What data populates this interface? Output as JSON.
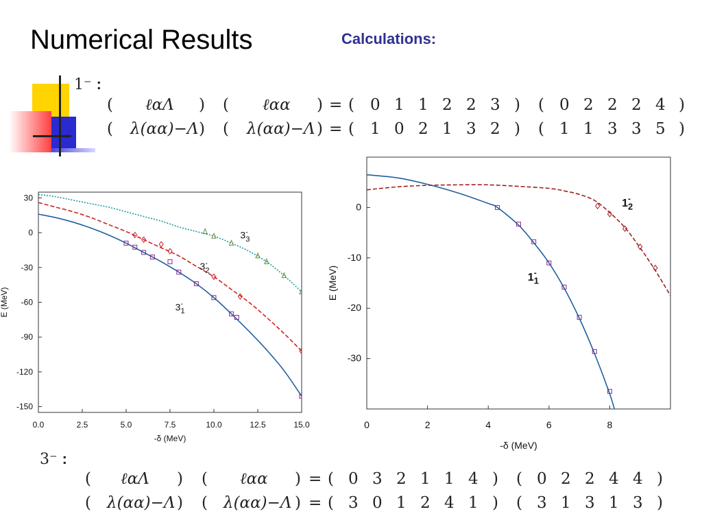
{
  "slide": {
    "title": "Numerical Results",
    "subtitle": "Calculations:"
  },
  "top_block": {
    "label": "1⁻",
    "row1": {
      "lhs1": "ℓαΛ",
      "lhs2": "ℓαα",
      "set1": [
        "0",
        "1",
        "1",
        "2",
        "2",
        "3"
      ],
      "set2": [
        "0",
        "2",
        "2",
        "2",
        "4"
      ]
    },
    "row2": {
      "lhs1": "λ(αα)−Λ",
      "lhs2": "λ(αα)−Λ",
      "set1": [
        "1",
        "0",
        "2",
        "1",
        "3",
        "2"
      ],
      "set2": [
        "1",
        "1",
        "3",
        "3",
        "5"
      ]
    }
  },
  "bottom_block": {
    "label": "3⁻",
    "row1": {
      "lhs1": "ℓαΛ",
      "lhs2": "ℓαα",
      "set1": [
        "0",
        "3",
        "2",
        "1",
        "1",
        "4"
      ],
      "set2": [
        "0",
        "2",
        "2",
        "4",
        "4"
      ]
    },
    "row2": {
      "lhs1": "λ(αα)−Λ",
      "lhs2": "λ(αα)−Λ",
      "set1": [
        "3",
        "0",
        "1",
        "2",
        "4",
        "1"
      ],
      "set2": [
        "3",
        "1",
        "3",
        "1",
        "3"
      ]
    }
  },
  "chart_data": [
    {
      "type": "line",
      "xlabel": "-δ (MeV)",
      "ylabel": "E (MeV)",
      "xlim": [
        0,
        15
      ],
      "ylim": [
        -155,
        35
      ],
      "xticks": [
        "0.0",
        "2.5",
        "5.0",
        "7.5",
        "10.0",
        "12.5",
        "15.0"
      ],
      "yticks": [
        "30",
        "0",
        "-30",
        "-60",
        "-90",
        "-120",
        "-150"
      ],
      "grid": false,
      "series": [
        {
          "name": "3⁻1",
          "color": "#1f5fa0",
          "dash": "solid",
          "x": [
            0,
            1,
            2,
            3,
            4,
            5,
            6,
            7,
            8,
            9,
            10,
            11,
            12,
            13,
            14,
            15
          ],
          "y": [
            16,
            13,
            9,
            4,
            -2,
            -9,
            -17,
            -25,
            -34,
            -44,
            -56,
            -70,
            -85,
            -101,
            -119,
            -141
          ]
        },
        {
          "name": "3⁻2",
          "color": "#cc2222",
          "dash": "dash",
          "x": [
            0,
            1,
            2,
            3,
            4,
            5,
            6,
            7,
            8,
            9,
            10,
            11,
            12,
            13,
            14,
            15
          ],
          "y": [
            26,
            22,
            18,
            13,
            7,
            1,
            -6,
            -13,
            -20,
            -29,
            -38,
            -49,
            -60,
            -73,
            -87,
            -102
          ]
        },
        {
          "name": "3⁻3",
          "color": "#1a9a9a",
          "dash": "dot",
          "x": [
            0,
            1,
            2,
            3,
            4,
            5,
            6,
            7,
            8,
            9,
            10,
            11,
            12,
            13,
            14,
            15
          ],
          "y": [
            33,
            31,
            28,
            25,
            22,
            18,
            14,
            10,
            5,
            1,
            -3,
            -9,
            -16,
            -25,
            -37,
            -51
          ]
        }
      ],
      "markers": [
        {
          "series": "3⁻1",
          "shape": "square",
          "color": "#8a2a8a",
          "x": [
            5,
            5.5,
            6,
            6.5,
            7.5,
            8,
            9,
            10,
            11,
            11.3,
            15
          ],
          "y": [
            -9,
            -12.5,
            -17,
            -21,
            -25,
            -34,
            -44,
            -56,
            -70,
            -73,
            -141
          ]
        },
        {
          "series": "3⁻2",
          "shape": "diamond",
          "color": "#cc2222",
          "x": [
            5.5,
            6,
            7,
            7.5,
            10,
            11.5,
            15
          ],
          "y": [
            -2,
            -6,
            -10,
            -16,
            -38,
            -55,
            -102
          ]
        },
        {
          "series": "3⁻3",
          "shape": "triangle",
          "color": "#6a8a3a",
          "x": [
            9.5,
            10,
            11,
            12.5,
            13,
            14,
            15
          ],
          "y": [
            1,
            -3,
            -9,
            -20,
            -25,
            -37,
            -51
          ]
        }
      ],
      "annotations": [
        {
          "text": "3",
          "sup": "-",
          "sub": "3",
          "x": 11.5,
          "y": -5
        },
        {
          "text": "3",
          "sup": "-",
          "sub": "2",
          "x": 9.2,
          "y": -32
        },
        {
          "text": "3",
          "sup": "-",
          "sub": "1",
          "x": 7.8,
          "y": -67
        }
      ]
    },
    {
      "type": "line",
      "xlabel": "-δ (MeV)",
      "ylabel": "E  (MeV)",
      "xlim": [
        0,
        10
      ],
      "ylim": [
        -40,
        10
      ],
      "xticks": [
        "0",
        "2",
        "4",
        "6",
        "8"
      ],
      "yticks": [
        "0",
        "-10",
        "-20",
        "-30"
      ],
      "grid": false,
      "series": [
        {
          "name": "1⁻1",
          "color": "#1f5fa0",
          "dash": "solid",
          "x": [
            0,
            1,
            2,
            3,
            4,
            4.3,
            5,
            5.5,
            6,
            6.5,
            7,
            7.5,
            8,
            8.2
          ],
          "y": [
            6.5,
            5.9,
            4.6,
            2.9,
            0.8,
            0,
            -3.5,
            -7,
            -11,
            -16,
            -22,
            -29,
            -37,
            -41
          ]
        },
        {
          "name": "1⁻2",
          "color": "#a02020",
          "dash": "dash",
          "x": [
            0,
            1,
            2,
            3,
            4,
            5,
            6,
            6.5,
            7,
            7.5,
            8,
            8.5,
            9,
            9.5,
            10
          ],
          "y": [
            3.5,
            4.1,
            4.4,
            4.5,
            4.5,
            4.2,
            3.8,
            3.3,
            2.6,
            1.4,
            -1,
            -4,
            -8,
            -12.5,
            -17.5
          ]
        }
      ],
      "markers": [
        {
          "series": "1⁻1",
          "shape": "square",
          "color": "#8a2a8a",
          "x": [
            4.3,
            5,
            5.5,
            6,
            6.5,
            7,
            7.5,
            8
          ],
          "y": [
            0,
            -3.3,
            -6.8,
            -11,
            -15.8,
            -21.8,
            -28.6,
            -36.5
          ]
        },
        {
          "series": "1⁻2",
          "shape": "diamond",
          "color": "#a02020",
          "x": [
            7.6,
            8,
            8.5,
            9,
            9.5
          ],
          "y": [
            0.3,
            -1.3,
            -4.2,
            -7.8,
            -12
          ]
        }
      ],
      "annotations": [
        {
          "text": "1",
          "sup": "-",
          "sub": "2",
          "x": 8.4,
          "y": 0.2
        },
        {
          "text": "1",
          "sup": "-",
          "sub": "1",
          "x": 5.3,
          "y": -14.5
        }
      ]
    }
  ]
}
